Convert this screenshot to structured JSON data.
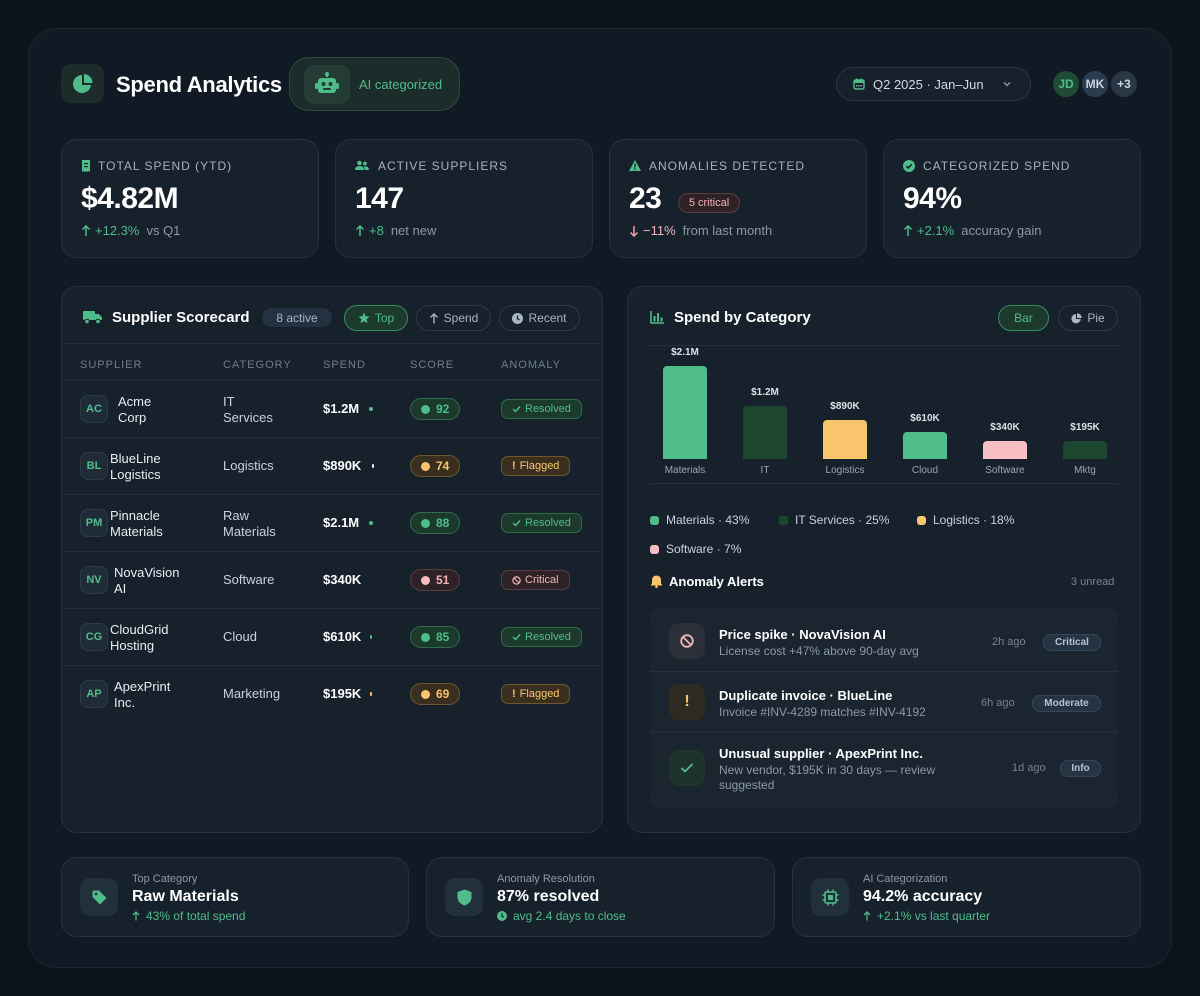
{
  "header": {
    "title": "Spend Analytics",
    "ai_badge": "AI categorized",
    "date_range": "Q2 2025 · Jan–Jun",
    "avatars": [
      "JD",
      "MK"
    ],
    "avatars_more": "+3"
  },
  "stats": [
    {
      "label": "TOTAL SPEND (YTD)",
      "icon": "receipt-icon",
      "value": "$4.82M",
      "delta": "+12.3%",
      "delta_text": "vs Q1",
      "direction": "up"
    },
    {
      "label": "ACTIVE SUPPLIERS",
      "icon": "users-icon",
      "value": "147",
      "delta": "+8",
      "delta_text": "net new",
      "direction": "up"
    },
    {
      "label": "ANOMALIES DETECTED",
      "icon": "warning-icon",
      "value": "23",
      "badge": "5 critical",
      "delta": "−11%",
      "delta_text": "from last month",
      "direction": "down"
    },
    {
      "label": "CATEGORIZED SPEND",
      "icon": "check-circle-icon",
      "value": "94%",
      "delta": "+2.1%",
      "delta_text": "accuracy gain",
      "direction": "up"
    }
  ],
  "scorecard": {
    "title": "Supplier Scorecard",
    "count": "8 active",
    "filters": [
      "Top",
      "Spend",
      "Recent"
    ],
    "columns": [
      "SUPPLIER",
      "CATEGORY",
      "SPEND",
      "SCORE",
      "ANOMALY"
    ],
    "rows": [
      {
        "initials": "AC",
        "name1": "Acme",
        "name2": "Corp",
        "cat1": "IT",
        "cat2": "Services",
        "spend": "$1.2M",
        "score": "92",
        "score_level": "good",
        "anomaly": "Resolved",
        "anomaly_type": "resolved"
      },
      {
        "initials": "BL",
        "name1": "BlueLine",
        "name2": "Logistics",
        "cat1": "Logistics",
        "cat2": "",
        "spend": "$890K",
        "score": "74",
        "score_level": "warn",
        "anomaly": "Flagged",
        "anomaly_type": "flagged"
      },
      {
        "initials": "PM",
        "name1": "Pinnacle",
        "name2": "Materials",
        "cat1": "Raw",
        "cat2": "Materials",
        "spend": "$2.1M",
        "score": "88",
        "score_level": "good",
        "anomaly": "Resolved",
        "anomaly_type": "resolved"
      },
      {
        "initials": "NV",
        "name1": "NovaVision",
        "name2": "AI",
        "cat1": "Software",
        "cat2": "",
        "spend": "$340K",
        "score": "51",
        "score_level": "bad",
        "anomaly": "Critical",
        "anomaly_type": "critical"
      },
      {
        "initials": "CG",
        "name1": "CloudGrid",
        "name2": "Hosting",
        "cat1": "Cloud",
        "cat2": "",
        "spend": "$610K",
        "score": "85",
        "score_level": "good",
        "anomaly": "Resolved",
        "anomaly_type": "resolved"
      },
      {
        "initials": "AP",
        "name1": "ApexPrint",
        "name2": "Inc.",
        "cat1": "Marketing",
        "cat2": "",
        "spend": "$195K",
        "score": "69",
        "score_level": "warn",
        "anomaly": "Flagged",
        "anomaly_type": "flagged"
      }
    ]
  },
  "category_chart": {
    "title": "Spend by Category",
    "toggles": [
      "Bar",
      "Pie"
    ],
    "legend": [
      "Materials · 43%",
      "IT Services · 25%",
      "Logistics · 18%",
      "Software · 7%"
    ]
  },
  "chart_data": {
    "type": "bar",
    "categories": [
      "Materials",
      "IT",
      "Logistics",
      "Cloud",
      "Software",
      "Mktg"
    ],
    "values": [
      2.1,
      1.2,
      0.89,
      0.61,
      0.34,
      0.195
    ],
    "value_labels": [
      "$2.1M",
      "$1.2M",
      "$890K",
      "$610K",
      "$340K",
      "$195K"
    ],
    "colors": [
      "#4fbd89",
      "#1d4630",
      "#f8c56d",
      "#4fbd89",
      "#f7bfc2",
      "#1d4630"
    ]
  },
  "alerts": {
    "title": "Anomaly Alerts",
    "unread": "3 unread",
    "items": [
      {
        "icon": "prohibited-icon",
        "title": "Price spike · NovaVision AI",
        "desc": "License cost +47% above 90-day avg",
        "time": "2h ago",
        "severity": "Critical"
      },
      {
        "icon": "exclamation-icon",
        "title": "Duplicate invoice · BlueLine",
        "desc": "Invoice #INV-4289 matches #INV-4192",
        "time": "6h ago",
        "severity": "Moderate"
      },
      {
        "icon": "check-icon",
        "title": "Unusual supplier · ApexPrint Inc.",
        "desc1": "New vendor, $195K in 30 days — review",
        "desc2": "suggested",
        "time": "1d ago",
        "severity": "Info"
      }
    ]
  },
  "summary": [
    {
      "icon": "tag-icon",
      "label": "Top Category",
      "value": "Raw Materials",
      "sub": "43% of total spend"
    },
    {
      "icon": "shield-icon",
      "label": "Anomaly Resolution",
      "value": "87% resolved",
      "sub": "avg 2.4 days to close"
    },
    {
      "icon": "chip-icon",
      "label": "AI Categorization",
      "value": "94.2% accuracy",
      "sub": "+2.1% vs last quarter"
    }
  ]
}
